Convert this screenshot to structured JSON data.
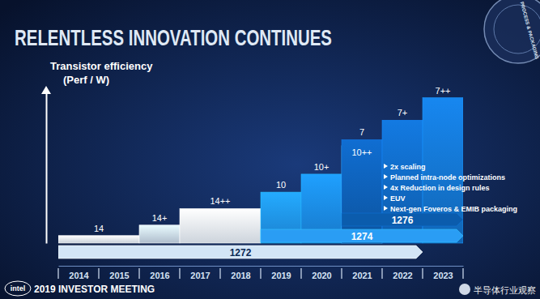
{
  "chart_data": {
    "type": "bar",
    "title": "RELENTLESS INNOVATION CONTINUES",
    "y_label": [
      "Transistor efficiency",
      "(Perf / W)"
    ],
    "categories": [
      "14",
      "14+",
      "14++",
      "10",
      "10+",
      "10++",
      "7",
      "7+",
      "7++"
    ],
    "x_start": [
      2014,
      2016,
      2017,
      2019,
      2020,
      2021,
      2021,
      2022,
      2023
    ],
    "x_end": [
      2016,
      2017,
      2019,
      2020,
      2021,
      2022,
      2022,
      2023,
      2024
    ],
    "values": [
      5,
      12,
      23,
      34,
      46,
      65,
      69,
      82,
      97
    ],
    "colors": [
      "#dfe8f2",
      "#c3d2e3",
      "#e4ecf5",
      "#1e8fe6",
      "#1a86e0",
      "#45a6ee",
      "#0d5cb0",
      "#1066bd",
      "#1371c9"
    ],
    "xlim": [
      2014,
      2024
    ],
    "xticks": [
      {
        "value": 2014.5,
        "label": "2014"
      },
      {
        "value": 2015.5,
        "label": "2015"
      },
      {
        "value": 2016.5,
        "label": "2016"
      },
      {
        "value": 2017.5,
        "label": "2017"
      },
      {
        "value": 2018.5,
        "label": "2018"
      },
      {
        "value": 2019.5,
        "label": "2019"
      },
      {
        "value": 2020.5,
        "label": "2020"
      },
      {
        "value": 2021.5,
        "label": "2021"
      },
      {
        "value": 2022.5,
        "label": "2022"
      },
      {
        "value": 2023.5,
        "label": "2023"
      }
    ],
    "ylim": [
      0,
      100
    ],
    "yticks": [],
    "tick_labels": "x",
    "processes": {
      "names": [
        "1272",
        "1274",
        "1276"
      ],
      "start": [
        2014,
        2019,
        2021
      ],
      "end": [
        2023,
        2024,
        2024
      ],
      "colors": [
        "#d3e5f6",
        "#2a9df4",
        "#0b5cad"
      ]
    },
    "annotations": [
      "2x scaling",
      "Planned intra-node optimizations",
      "4x Reduction in design rules",
      "EUV",
      "Next-gen Foveros & EMIB packaging"
    ],
    "logo": "intel",
    "footer": "2019 INVESTOR MEETING",
    "badge": "PROCESS & PACKAGING",
    "watermark": "半导体行业观察"
  }
}
